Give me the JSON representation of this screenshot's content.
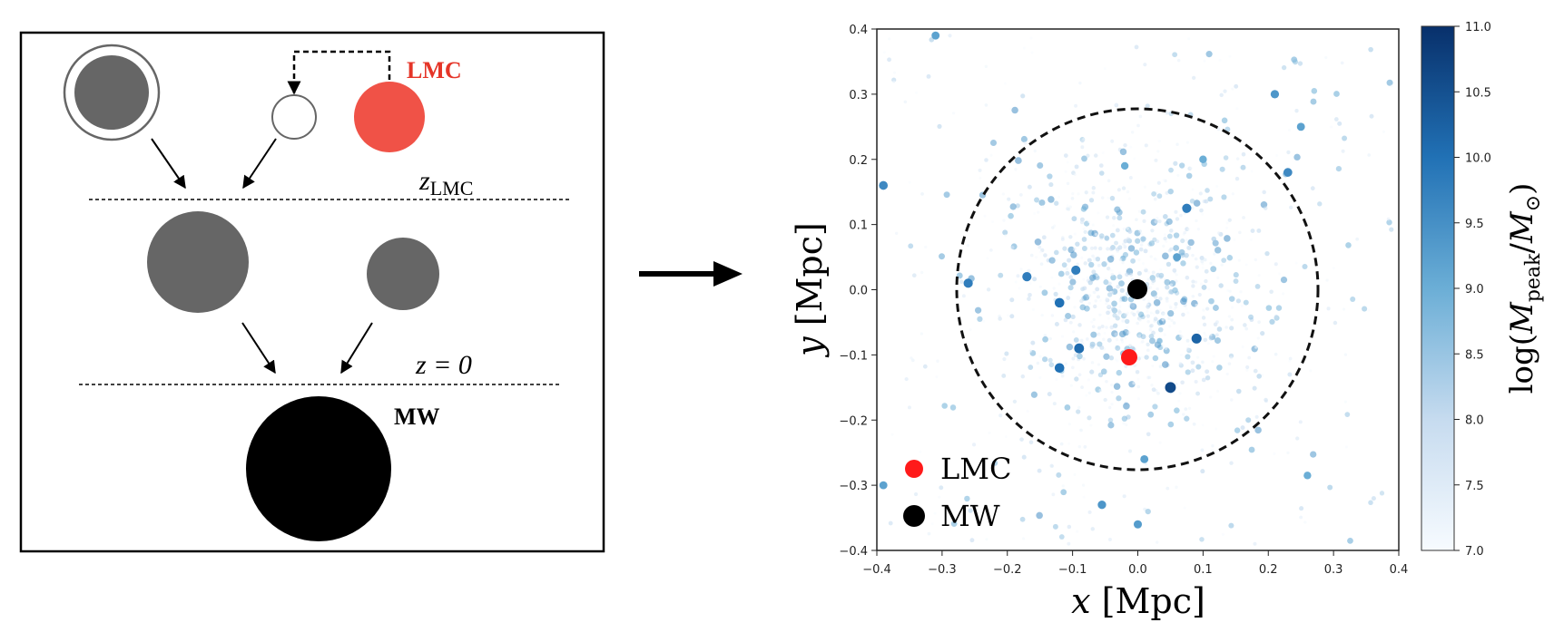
{
  "diagram": {
    "lmc_label": "LMC",
    "z_lmc_symbol": "z",
    "z_lmc_subscript": "LMC",
    "z0_label": "z = 0",
    "mw_label": "MW",
    "colors": {
      "lmc": "#f05247",
      "halo": "#666666",
      "mw": "#000000"
    }
  },
  "chart_data": {
    "type": "scatter",
    "xlabel_var": "x",
    "xlabel_unit": "[Mpc]",
    "ylabel_var": "y",
    "ylabel_unit": "[Mpc]",
    "xlim": [
      -0.4,
      0.4
    ],
    "ylim": [
      -0.4,
      0.4
    ],
    "xticks": [
      "−0.4",
      "−0.3",
      "−0.2",
      "−0.1",
      "0.0",
      "0.1",
      "0.2",
      "0.3",
      "0.4"
    ],
    "yticks": [
      "−0.4",
      "−0.3",
      "−0.2",
      "−0.1",
      "0.0",
      "0.1",
      "0.2",
      "0.3",
      "0.4"
    ],
    "colorbar": {
      "label": "log(M_peak/M_⊙)",
      "range": [
        7.0,
        11.0
      ],
      "ticks": [
        "7.0",
        "7.5",
        "8.0",
        "8.5",
        "9.0",
        "9.5",
        "10.0",
        "10.5",
        "11.0"
      ],
      "colormap": "Blues"
    },
    "circle_radius_mpc": 0.275,
    "legend": [
      {
        "label": "LMC",
        "color": "#ff0000"
      },
      {
        "label": "MW",
        "color": "#000000"
      }
    ],
    "highlight_points": [
      {
        "name": "MW",
        "x": 0.0,
        "y": 0.0,
        "color": "#000000"
      },
      {
        "name": "LMC",
        "x": -0.013,
        "y": -0.107,
        "color": "#ff0000"
      }
    ],
    "subhalos": [
      {
        "x": 0.0,
        "y": -0.36,
        "m": 9.3
      },
      {
        "x": -0.31,
        "y": 0.39,
        "m": 9.2
      },
      {
        "x": -0.39,
        "y": 0.16,
        "m": 9.6
      },
      {
        "x": -0.39,
        "y": -0.3,
        "m": 9.2
      },
      {
        "x": -0.26,
        "y": 0.01,
        "m": 9.8
      },
      {
        "x": 0.23,
        "y": 0.18,
        "m": 9.6
      },
      {
        "x": 0.21,
        "y": 0.3,
        "m": 9.4
      },
      {
        "x": 0.25,
        "y": 0.25,
        "m": 9.2
      },
      {
        "x": -0.17,
        "y": 0.02,
        "m": 9.8
      },
      {
        "x": -0.12,
        "y": -0.02,
        "m": 10.0
      },
      {
        "x": -0.09,
        "y": -0.09,
        "m": 10.1
      },
      {
        "x": -0.12,
        "y": -0.12,
        "m": 10.0
      },
      {
        "x": 0.09,
        "y": -0.075,
        "m": 10.2
      },
      {
        "x": 0.05,
        "y": -0.15,
        "m": 10.6
      },
      {
        "x": -0.055,
        "y": -0.33,
        "m": 9.4
      },
      {
        "x": 0.01,
        "y": -0.26,
        "m": 9.2
      },
      {
        "x": 0.075,
        "y": 0.125,
        "m": 9.8
      },
      {
        "x": -0.095,
        "y": 0.03,
        "m": 9.8
      },
      {
        "x": 0.06,
        "y": 0.05,
        "m": 9.2
      },
      {
        "x": 0.26,
        "y": -0.285,
        "m": 9.0
      },
      {
        "x": -0.02,
        "y": 0.19,
        "m": 9.0
      },
      {
        "x": 0.1,
        "y": 0.2,
        "m": 9.0
      }
    ]
  }
}
